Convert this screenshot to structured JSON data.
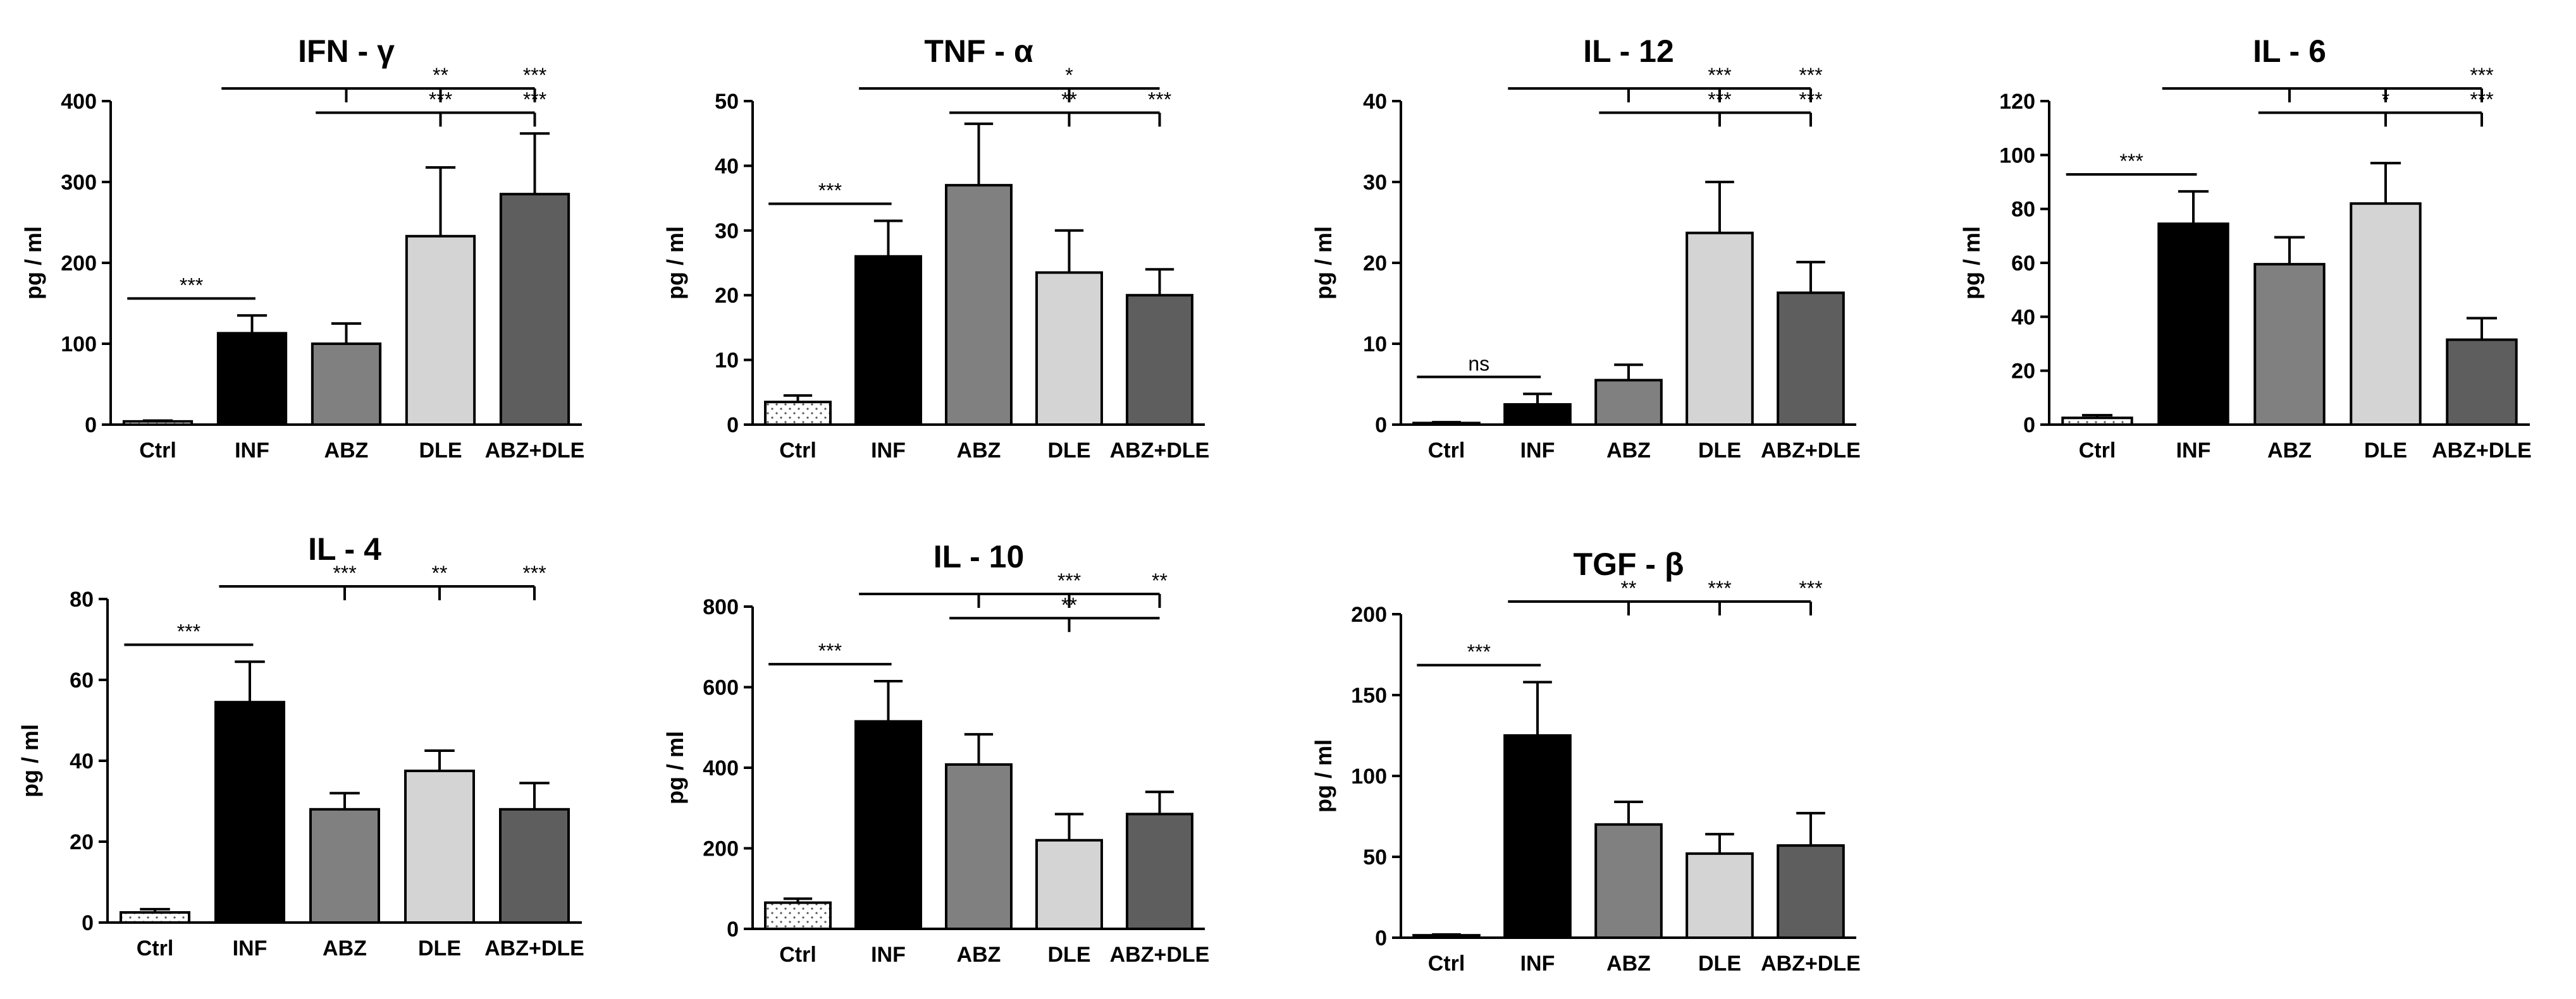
{
  "colors": {
    "Ctrl": "#ffffff",
    "INF": "#000000",
    "ABZ": "#808080",
    "DLE": "#d4d4d4",
    "ABZ+DLE": "#5e5e5e",
    "axis": "#000000"
  },
  "chart_data": [
    {
      "type": "bar",
      "title": "IFN - γ",
      "ylabel": "pg / ml",
      "categories": [
        "Ctrl",
        "INF",
        "ABZ",
        "DLE",
        "ABZ+DLE"
      ],
      "values": [
        4,
        113,
        100,
        233,
        285
      ],
      "errors": [
        1,
        22,
        25,
        85,
        75
      ],
      "ylim": [
        0,
        400
      ],
      "yticks": [
        "0",
        "100",
        "200",
        "300",
        "400"
      ],
      "annotations": [
        {
          "type": "bar",
          "from": 0,
          "to": 1,
          "label": "***"
        },
        {
          "type": "group",
          "from": 1,
          "to": 4,
          "label": "",
          "ticks": [
            {
              "at": 2,
              "label": ""
            },
            {
              "at": 3,
              "label": "**"
            },
            {
              "at": 4,
              "label": "***"
            }
          ]
        },
        {
          "type": "group",
          "from": 2,
          "to": 4,
          "label": "",
          "ticks": [
            {
              "at": 3,
              "label": "***"
            },
            {
              "at": 4,
              "label": "***"
            }
          ]
        }
      ]
    },
    {
      "type": "bar",
      "title": "TNF - α",
      "ylabel": "pg / ml",
      "categories": [
        "Ctrl",
        "INF",
        "ABZ",
        "DLE",
        "ABZ+DLE"
      ],
      "values": [
        3.5,
        26,
        37,
        23.5,
        20
      ],
      "errors": [
        1,
        5.5,
        9.5,
        6.5,
        4
      ],
      "ylim": [
        0,
        50
      ],
      "yticks": [
        "0",
        "10",
        "20",
        "30",
        "40",
        "50"
      ],
      "annotations": [
        {
          "type": "bar",
          "from": 0,
          "to": 1,
          "label": "***"
        },
        {
          "type": "group",
          "from": 1,
          "to": 4,
          "label": "",
          "ticks": [
            {
              "at": 3,
              "label": "*"
            }
          ]
        },
        {
          "type": "group",
          "from": 2,
          "to": 4,
          "label": "",
          "ticks": [
            {
              "at": 3,
              "label": "**"
            },
            {
              "at": 4,
              "label": "***"
            }
          ]
        }
      ]
    },
    {
      "type": "bar",
      "title": "IL - 12",
      "ylabel": "pg / ml",
      "categories": [
        "Ctrl",
        "INF",
        "ABZ",
        "DLE",
        "ABZ+DLE"
      ],
      "values": [
        0.2,
        2.5,
        5.5,
        23.7,
        16.3
      ],
      "errors": [
        0.1,
        1.3,
        1.9,
        6.3,
        3.8
      ],
      "ylim": [
        0,
        40
      ],
      "yticks": [
        "0",
        "10",
        "20",
        "30",
        "40"
      ],
      "annotations": [
        {
          "type": "bar",
          "from": 0,
          "to": 1,
          "label": "ns"
        },
        {
          "type": "group",
          "from": 1,
          "to": 4,
          "label": "",
          "ticks": [
            {
              "at": 2,
              "label": ""
            },
            {
              "at": 3,
              "label": "***"
            },
            {
              "at": 4,
              "label": "***"
            }
          ]
        },
        {
          "type": "group",
          "from": 2,
          "to": 4,
          "label": "",
          "ticks": [
            {
              "at": 3,
              "label": "***"
            },
            {
              "at": 4,
              "label": "***"
            }
          ]
        }
      ]
    },
    {
      "type": "bar",
      "title": "IL - 6",
      "ylabel": "pg / ml",
      "categories": [
        "Ctrl",
        "INF",
        "ABZ",
        "DLE",
        "ABZ+DLE"
      ],
      "values": [
        2.5,
        74.5,
        59.5,
        82,
        31.5
      ],
      "errors": [
        1,
        12,
        10,
        15,
        8
      ],
      "ylim": [
        0,
        120
      ],
      "yticks": [
        "0",
        "20",
        "40",
        "60",
        "80",
        "100",
        "120"
      ],
      "annotations": [
        {
          "type": "bar",
          "from": 0,
          "to": 1,
          "label": "***"
        },
        {
          "type": "group",
          "from": 1,
          "to": 4,
          "label": "",
          "ticks": [
            {
              "at": 2,
              "label": ""
            },
            {
              "at": 3,
              "label": ""
            },
            {
              "at": 4,
              "label": "***"
            }
          ]
        },
        {
          "type": "group",
          "from": 2,
          "to": 4,
          "label": "",
          "ticks": [
            {
              "at": 3,
              "label": "*"
            },
            {
              "at": 4,
              "label": "***"
            }
          ]
        }
      ]
    },
    {
      "type": "bar",
      "title": "IL - 4",
      "ylabel": "pg / ml",
      "categories": [
        "Ctrl",
        "INF",
        "ABZ",
        "DLE",
        "ABZ+DLE"
      ],
      "values": [
        2.5,
        54.5,
        28,
        37.5,
        28
      ],
      "errors": [
        0.8,
        10,
        4,
        5,
        6.5
      ],
      "ylim": [
        0,
        80
      ],
      "yticks": [
        "0",
        "20",
        "40",
        "60",
        "80"
      ],
      "annotations": [
        {
          "type": "bar",
          "from": 0,
          "to": 1,
          "label": "***"
        },
        {
          "type": "group",
          "from": 1,
          "to": 4,
          "label": "",
          "ticks": [
            {
              "at": 2,
              "label": "***"
            },
            {
              "at": 3,
              "label": "**"
            },
            {
              "at": 4,
              "label": "***"
            }
          ]
        }
      ]
    },
    {
      "type": "bar",
      "title": "IL - 10",
      "ylabel": "pg / ml",
      "categories": [
        "Ctrl",
        "INF",
        "ABZ",
        "DLE",
        "ABZ+DLE"
      ],
      "values": [
        65,
        515,
        408,
        220,
        285
      ],
      "errors": [
        10,
        100,
        75,
        65,
        55
      ],
      "ylim": [
        0,
        800
      ],
      "yticks": [
        "0",
        "200",
        "400",
        "600",
        "800"
      ],
      "annotations": [
        {
          "type": "bar",
          "from": 0,
          "to": 1,
          "label": "***"
        },
        {
          "type": "group",
          "from": 1,
          "to": 4,
          "label": "",
          "ticks": [
            {
              "at": 2,
              "label": ""
            },
            {
              "at": 3,
              "label": "***"
            },
            {
              "at": 4,
              "label": "**"
            }
          ]
        },
        {
          "type": "group",
          "from": 2,
          "to": 4,
          "label": "",
          "ticks": [
            {
              "at": 3,
              "label": "**"
            }
          ]
        }
      ]
    },
    {
      "type": "bar",
      "title": "TGF - β",
      "ylabel": "pg / ml",
      "categories": [
        "Ctrl",
        "INF",
        "ABZ",
        "DLE",
        "ABZ+DLE"
      ],
      "values": [
        1.5,
        125,
        70,
        52,
        57
      ],
      "errors": [
        0.5,
        33,
        14,
        12,
        20
      ],
      "ylim": [
        0,
        200
      ],
      "yticks": [
        "0",
        "50",
        "100",
        "150",
        "200"
      ],
      "annotations": [
        {
          "type": "bar",
          "from": 0,
          "to": 1,
          "label": "***"
        },
        {
          "type": "group",
          "from": 1,
          "to": 4,
          "label": "",
          "ticks": [
            {
              "at": 2,
              "label": "**"
            },
            {
              "at": 3,
              "label": "***"
            },
            {
              "at": 4,
              "label": "***"
            }
          ]
        }
      ]
    }
  ]
}
